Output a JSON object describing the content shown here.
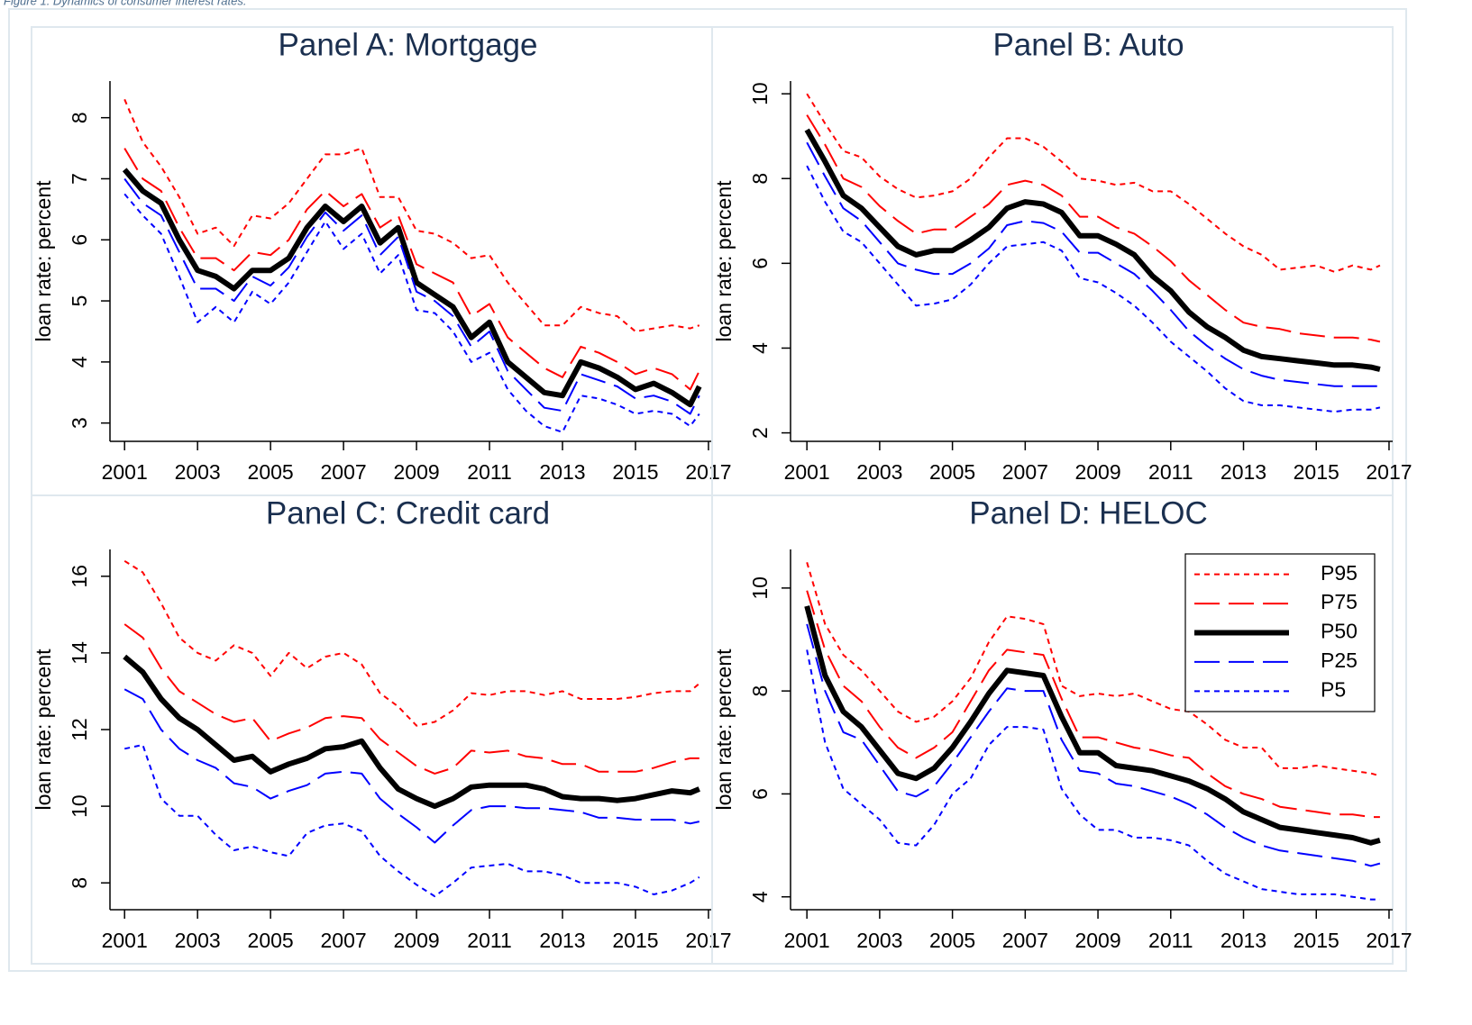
{
  "caption": "Figure 1. Dynamics of consumer interest rates.",
  "chart_data": [
    {
      "type": "line",
      "title": "Panel A: Mortgage",
      "y_label": "loan rate: percent",
      "x": [
        2001,
        2001.5,
        2002,
        2002.5,
        2003,
        2003.5,
        2004,
        2004.5,
        2005,
        2005.5,
        2006,
        2006.5,
        2007,
        2007.5,
        2008,
        2008.5,
        2009,
        2009.5,
        2010,
        2010.5,
        2011,
        2011.5,
        2012,
        2012.5,
        2013,
        2013.5,
        2014,
        2014.5,
        2015,
        2015.5,
        2016,
        2016.5,
        2016.75
      ],
      "xlim": [
        2000.6,
        2017.1
      ],
      "xticks": [
        2001,
        2003,
        2005,
        2007,
        2009,
        2011,
        2013,
        2015,
        2017
      ],
      "ylim": [
        2.7,
        8.6
      ],
      "yticks": [
        3,
        4,
        5,
        6,
        7,
        8
      ],
      "series": [
        {
          "color": "#ff0000",
          "dash": "short",
          "values": [
            8.3,
            7.6,
            7.2,
            6.7,
            6.1,
            6.2,
            5.9,
            6.4,
            6.35,
            6.6,
            7.0,
            7.4,
            7.4,
            7.5,
            6.7,
            6.7,
            6.15,
            6.1,
            5.95,
            5.7,
            5.75,
            5.3,
            4.95,
            4.6,
            4.6,
            4.9,
            4.8,
            4.75,
            4.5,
            4.55,
            4.6,
            4.55,
            4.6
          ]
        },
        {
          "color": "#ff0000",
          "dash": "long",
          "values": [
            7.5,
            7.0,
            6.8,
            6.2,
            5.7,
            5.7,
            5.5,
            5.8,
            5.75,
            6.0,
            6.5,
            6.8,
            6.55,
            6.75,
            6.2,
            6.4,
            5.6,
            5.45,
            5.3,
            4.75,
            4.95,
            4.4,
            4.15,
            3.9,
            3.75,
            4.25,
            4.15,
            4.0,
            3.8,
            3.9,
            3.8,
            3.55,
            3.85
          ]
        },
        {
          "color": "#000000",
          "dash": "solid",
          "values": [
            7.15,
            6.8,
            6.6,
            6.0,
            5.5,
            5.4,
            5.2,
            5.5,
            5.5,
            5.7,
            6.2,
            6.55,
            6.3,
            6.55,
            5.95,
            6.2,
            5.3,
            5.1,
            4.9,
            4.4,
            4.65,
            4.0,
            3.75,
            3.5,
            3.45,
            4.0,
            3.9,
            3.75,
            3.55,
            3.65,
            3.5,
            3.3,
            3.6
          ]
        },
        {
          "color": "#0000ff",
          "dash": "long",
          "values": [
            7.0,
            6.6,
            6.4,
            5.8,
            5.2,
            5.2,
            5.0,
            5.4,
            5.25,
            5.55,
            6.05,
            6.45,
            6.15,
            6.4,
            5.75,
            6.05,
            5.15,
            5.0,
            4.75,
            4.25,
            4.5,
            3.85,
            3.55,
            3.25,
            3.2,
            3.8,
            3.7,
            3.6,
            3.4,
            3.45,
            3.35,
            3.15,
            3.45
          ]
        },
        {
          "color": "#0000ff",
          "dash": "short",
          "values": [
            6.75,
            6.4,
            6.1,
            5.4,
            4.65,
            4.9,
            4.65,
            5.15,
            4.95,
            5.3,
            5.8,
            6.3,
            5.85,
            6.1,
            5.45,
            5.75,
            4.85,
            4.8,
            4.5,
            4.0,
            4.15,
            3.55,
            3.2,
            2.95,
            2.85,
            3.45,
            3.4,
            3.3,
            3.15,
            3.2,
            3.15,
            2.95,
            3.15
          ]
        }
      ]
    },
    {
      "type": "line",
      "title": "Panel B: Auto",
      "y_label": "loan rate: percent",
      "x": [
        2001,
        2001.5,
        2002,
        2002.5,
        2003,
        2003.5,
        2004,
        2004.5,
        2005,
        2005.5,
        2006,
        2006.5,
        2007,
        2007.5,
        2008,
        2008.5,
        2009,
        2009.5,
        2010,
        2010.5,
        2011,
        2011.5,
        2012,
        2012.5,
        2013,
        2013.5,
        2014,
        2014.5,
        2015,
        2015.5,
        2016,
        2016.5,
        2016.75
      ],
      "xlim": [
        2000.55,
        2017.1
      ],
      "xticks": [
        2001,
        2003,
        2005,
        2007,
        2009,
        2011,
        2013,
        2015,
        2017
      ],
      "ylim": [
        1.8,
        10.3
      ],
      "yticks": [
        2,
        4,
        6,
        8,
        10
      ],
      "series": [
        {
          "color": "#ff0000",
          "dash": "short",
          "values": [
            10.0,
            9.3,
            8.65,
            8.5,
            8.05,
            7.75,
            7.55,
            7.6,
            7.7,
            8.0,
            8.5,
            8.95,
            8.95,
            8.75,
            8.4,
            8.0,
            7.95,
            7.85,
            7.9,
            7.7,
            7.7,
            7.4,
            7.05,
            6.7,
            6.4,
            6.2,
            5.85,
            5.9,
            5.95,
            5.8,
            5.95,
            5.85,
            5.95
          ]
        },
        {
          "color": "#ff0000",
          "dash": "long",
          "values": [
            9.5,
            8.8,
            8.0,
            7.8,
            7.35,
            7.0,
            6.7,
            6.8,
            6.8,
            7.1,
            7.4,
            7.85,
            7.95,
            7.85,
            7.6,
            7.1,
            7.1,
            6.85,
            6.7,
            6.4,
            6.05,
            5.6,
            5.25,
            4.9,
            4.6,
            4.5,
            4.45,
            4.35,
            4.3,
            4.25,
            4.25,
            4.2,
            4.15
          ]
        },
        {
          "color": "#000000",
          "dash": "solid",
          "values": [
            9.15,
            8.4,
            7.6,
            7.3,
            6.85,
            6.4,
            6.2,
            6.3,
            6.3,
            6.55,
            6.85,
            7.3,
            7.45,
            7.4,
            7.2,
            6.65,
            6.65,
            6.45,
            6.2,
            5.7,
            5.35,
            4.85,
            4.5,
            4.25,
            3.95,
            3.8,
            3.75,
            3.7,
            3.65,
            3.6,
            3.6,
            3.55,
            3.5
          ]
        },
        {
          "color": "#0000ff",
          "dash": "long",
          "values": [
            8.85,
            8.05,
            7.3,
            7.0,
            6.5,
            6.0,
            5.85,
            5.75,
            5.75,
            6.0,
            6.35,
            6.9,
            7.0,
            6.95,
            6.75,
            6.25,
            6.25,
            6.0,
            5.75,
            5.35,
            4.9,
            4.4,
            4.05,
            3.75,
            3.5,
            3.35,
            3.25,
            3.2,
            3.15,
            3.1,
            3.1,
            3.1,
            3.1
          ]
        },
        {
          "color": "#0000ff",
          "dash": "short",
          "values": [
            8.3,
            7.45,
            6.75,
            6.5,
            6.0,
            5.5,
            5.0,
            5.05,
            5.15,
            5.5,
            6.0,
            6.4,
            6.45,
            6.5,
            6.3,
            5.65,
            5.55,
            5.3,
            5.0,
            4.6,
            4.15,
            3.8,
            3.45,
            3.05,
            2.75,
            2.65,
            2.65,
            2.6,
            2.55,
            2.5,
            2.55,
            2.55,
            2.6
          ]
        }
      ]
    },
    {
      "type": "line",
      "title": "Panel C: Credit card",
      "y_label": "loan rate: percent",
      "x": [
        2001,
        2001.5,
        2002,
        2002.5,
        2003,
        2003.5,
        2004,
        2004.5,
        2005,
        2005.5,
        2006,
        2006.5,
        2007,
        2007.5,
        2008,
        2008.5,
        2009,
        2009.5,
        2010,
        2010.5,
        2011,
        2011.5,
        2012,
        2012.5,
        2013,
        2013.5,
        2014,
        2014.5,
        2015,
        2015.5,
        2016,
        2016.5,
        2016.75
      ],
      "xlim": [
        2000.6,
        2017.1
      ],
      "xticks": [
        2001,
        2003,
        2005,
        2007,
        2009,
        2011,
        2013,
        2015,
        2017
      ],
      "ylim": [
        7.3,
        16.7
      ],
      "yticks": [
        8,
        10,
        12,
        14,
        16
      ],
      "series": [
        {
          "color": "#ff0000",
          "dash": "short",
          "values": [
            16.4,
            16.1,
            15.3,
            14.4,
            14.0,
            13.8,
            14.2,
            14.0,
            13.4,
            14.0,
            13.6,
            13.9,
            14.0,
            13.7,
            12.95,
            12.6,
            12.1,
            12.2,
            12.5,
            12.95,
            12.9,
            13.0,
            13.0,
            12.9,
            13.0,
            12.8,
            12.8,
            12.8,
            12.85,
            12.95,
            13.0,
            13.0,
            13.2
          ]
        },
        {
          "color": "#ff0000",
          "dash": "long",
          "values": [
            14.75,
            14.4,
            13.6,
            13.0,
            12.7,
            12.4,
            12.2,
            12.3,
            11.7,
            11.9,
            12.05,
            12.3,
            12.35,
            12.3,
            11.75,
            11.4,
            11.05,
            10.85,
            11.0,
            11.45,
            11.4,
            11.45,
            11.3,
            11.25,
            11.1,
            11.1,
            10.9,
            10.9,
            10.9,
            11.0,
            11.15,
            11.25,
            11.25
          ]
        },
        {
          "color": "#000000",
          "dash": "solid",
          "values": [
            13.9,
            13.5,
            12.8,
            12.3,
            12.0,
            11.6,
            11.2,
            11.3,
            10.9,
            11.1,
            11.25,
            11.5,
            11.55,
            11.7,
            11.0,
            10.45,
            10.2,
            10.0,
            10.2,
            10.5,
            10.55,
            10.55,
            10.55,
            10.45,
            10.25,
            10.2,
            10.2,
            10.15,
            10.2,
            10.3,
            10.4,
            10.35,
            10.45
          ]
        },
        {
          "color": "#0000ff",
          "dash": "long",
          "values": [
            13.05,
            12.8,
            12.0,
            11.5,
            11.2,
            11.0,
            10.6,
            10.5,
            10.2,
            10.4,
            10.55,
            10.85,
            10.9,
            10.85,
            10.2,
            9.8,
            9.45,
            9.05,
            9.5,
            9.9,
            10.0,
            10.0,
            9.95,
            9.95,
            9.9,
            9.85,
            9.7,
            9.7,
            9.65,
            9.65,
            9.65,
            9.55,
            9.6
          ]
        },
        {
          "color": "#0000ff",
          "dash": "short",
          "values": [
            11.5,
            11.6,
            10.2,
            9.75,
            9.75,
            9.25,
            8.85,
            8.95,
            8.8,
            8.7,
            9.3,
            9.5,
            9.55,
            9.35,
            8.7,
            8.3,
            7.95,
            7.65,
            8.0,
            8.4,
            8.45,
            8.5,
            8.3,
            8.3,
            8.2,
            8.0,
            8.0,
            8.0,
            7.9,
            7.7,
            7.8,
            8.0,
            8.15
          ]
        }
      ]
    },
    {
      "type": "line",
      "title": "Panel D: HELOC",
      "y_label": "loan rate: percent",
      "legend": "top-right",
      "x": [
        2001,
        2001.5,
        2002,
        2002.5,
        2003,
        2003.5,
        2004,
        2004.5,
        2005,
        2005.5,
        2006,
        2006.5,
        2007,
        2007.5,
        2008,
        2008.5,
        2009,
        2009.5,
        2010,
        2010.5,
        2011,
        2011.5,
        2012,
        2012.5,
        2013,
        2013.5,
        2014,
        2014.5,
        2015,
        2015.5,
        2016,
        2016.5,
        2016.75
      ],
      "xlim": [
        2000.55,
        2017.1
      ],
      "xticks": [
        2001,
        2003,
        2005,
        2007,
        2009,
        2011,
        2013,
        2015,
        2017
      ],
      "ylim": [
        3.75,
        10.75
      ],
      "yticks": [
        4,
        6,
        8,
        10
      ],
      "series": [
        {
          "name": "P95",
          "color": "#ff0000",
          "dash": "short",
          "values": [
            10.5,
            9.3,
            8.7,
            8.4,
            8.0,
            7.6,
            7.4,
            7.5,
            7.8,
            8.25,
            8.95,
            9.45,
            9.4,
            9.3,
            8.1,
            7.9,
            7.95,
            7.9,
            7.95,
            7.8,
            7.65,
            7.6,
            7.35,
            7.05,
            6.9,
            6.9,
            6.5,
            6.5,
            6.55,
            6.5,
            6.45,
            6.4,
            6.35
          ]
        },
        {
          "name": "P75",
          "color": "#ff0000",
          "dash": "long",
          "values": [
            9.95,
            8.8,
            8.1,
            7.8,
            7.3,
            6.9,
            6.7,
            6.9,
            7.2,
            7.8,
            8.4,
            8.8,
            8.75,
            8.7,
            7.85,
            7.1,
            7.1,
            7.0,
            6.9,
            6.85,
            6.75,
            6.7,
            6.4,
            6.15,
            6.0,
            5.9,
            5.75,
            5.7,
            5.65,
            5.6,
            5.6,
            5.55,
            5.55
          ]
        },
        {
          "name": "P50",
          "color": "#000000",
          "dash": "solid",
          "values": [
            9.65,
            8.3,
            7.6,
            7.3,
            6.85,
            6.4,
            6.3,
            6.5,
            6.9,
            7.4,
            7.95,
            8.4,
            8.35,
            8.3,
            7.5,
            6.8,
            6.8,
            6.55,
            6.5,
            6.45,
            6.35,
            6.25,
            6.1,
            5.9,
            5.65,
            5.5,
            5.35,
            5.3,
            5.25,
            5.2,
            5.15,
            5.05,
            5.1
          ]
        },
        {
          "name": "P25",
          "color": "#0000ff",
          "dash": "long",
          "values": [
            9.3,
            8.0,
            7.2,
            7.05,
            6.55,
            6.05,
            5.95,
            6.15,
            6.6,
            7.1,
            7.6,
            8.05,
            8.0,
            8.0,
            7.05,
            6.45,
            6.4,
            6.2,
            6.15,
            6.05,
            5.95,
            5.8,
            5.6,
            5.35,
            5.15,
            5.0,
            4.9,
            4.85,
            4.8,
            4.75,
            4.7,
            4.6,
            4.65
          ]
        },
        {
          "name": "P5",
          "color": "#0000ff",
          "dash": "short",
          "values": [
            8.8,
            7.0,
            6.1,
            5.8,
            5.5,
            5.05,
            5.0,
            5.4,
            6.0,
            6.3,
            6.95,
            7.3,
            7.3,
            7.25,
            6.1,
            5.6,
            5.3,
            5.3,
            5.15,
            5.15,
            5.1,
            5.0,
            4.7,
            4.45,
            4.3,
            4.15,
            4.1,
            4.05,
            4.05,
            4.05,
            4.0,
            3.95,
            3.95
          ]
        }
      ]
    }
  ]
}
